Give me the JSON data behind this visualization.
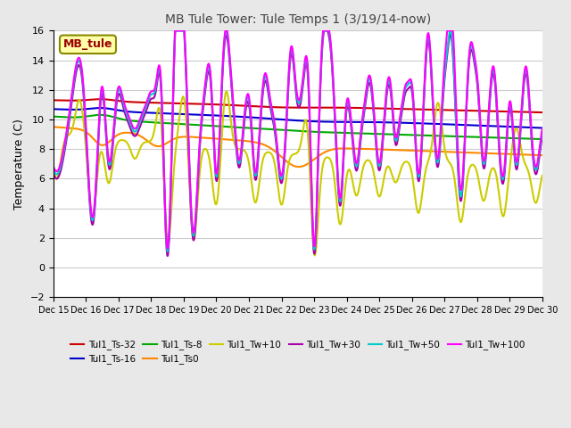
{
  "title": "MB Tule Tower: Tule Temps 1 (3/19/14-now)",
  "ylabel": "Temperature (C)",
  "ylim": [
    -2,
    16
  ],
  "yticks": [
    -2,
    0,
    2,
    4,
    6,
    8,
    10,
    12,
    14,
    16
  ],
  "x_tick_labels": [
    "Dec 15",
    "Dec 16",
    "Dec 17",
    "Dec 18",
    "Dec 19",
    "Dec 20",
    "Dec 21",
    "Dec 22",
    "Dec 23",
    "Dec 24",
    "Dec 25",
    "Dec 26",
    "Dec 27",
    "Dec 28",
    "Dec 29",
    "Dec 30"
  ],
  "series_order": [
    "Tul1_Ts-32",
    "Tul1_Ts-16",
    "Tul1_Ts-8",
    "Tul1_Ts0",
    "Tul1_Tw+10",
    "Tul1_Tw+30",
    "Tul1_Tw+50",
    "Tul1_Tw+100"
  ],
  "series": {
    "Tul1_Ts-32": {
      "color": "#cc0000",
      "lw": 1.5
    },
    "Tul1_Ts-16": {
      "color": "#0000cc",
      "lw": 1.5
    },
    "Tul1_Ts-8": {
      "color": "#00aa00",
      "lw": 1.5
    },
    "Tul1_Ts0": {
      "color": "#ff8800",
      "lw": 1.5
    },
    "Tul1_Tw+10": {
      "color": "#cccc00",
      "lw": 1.5
    },
    "Tul1_Tw+30": {
      "color": "#aa00aa",
      "lw": 1.5
    },
    "Tul1_Tw+50": {
      "color": "#00cccc",
      "lw": 1.5
    },
    "Tul1_Tw+100": {
      "color": "#ff00ff",
      "lw": 1.5
    }
  },
  "legend_box": {
    "text": "MB_tule",
    "facecolor": "#ffffaa",
    "edgecolor": "#888800",
    "textcolor": "#990000"
  },
  "grid_color": "#cccccc",
  "bg_color": "#e8e8e8",
  "plot_bg_color": "#ffffff"
}
